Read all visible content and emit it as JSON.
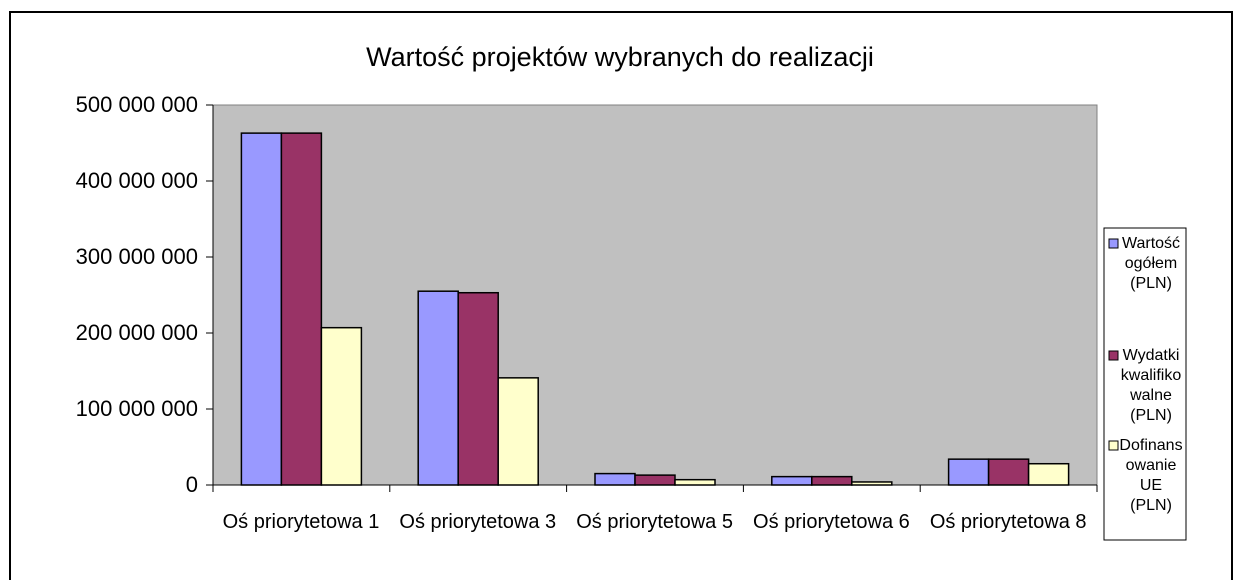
{
  "chart_data": {
    "type": "bar",
    "title": "Wartość projektów wybranych do realizacji",
    "categories": [
      "Oś priorytetowa 1",
      "Oś priorytetowa 3",
      "Oś priorytetowa 5",
      "Oś priorytetowa 6",
      "Oś priorytetowa 8"
    ],
    "series": [
      {
        "name": "Wartość ogółem (PLN)",
        "color": "#9999ff",
        "values": [
          463000000,
          255000000,
          15000000,
          11000000,
          34000000
        ]
      },
      {
        "name": "Wydatki kwalifikowalne (PLN)",
        "color": "#993366",
        "values": [
          463000000,
          253000000,
          13000000,
          11000000,
          34000000
        ]
      },
      {
        "name": "Dofinansowanie UE (PLN)",
        "color": "#ffffcc",
        "values": [
          207000000,
          141000000,
          7000000,
          4000000,
          28000000
        ]
      }
    ],
    "ylim": [
      0,
      500000000
    ],
    "yticks": [
      0,
      {
        "value": 100000000,
        "label": "100 000 000"
      },
      {
        "value": 200000000,
        "label": "200 000 000"
      },
      {
        "value": 300000000,
        "label": "300 000 000"
      },
      {
        "value": 400000000,
        "label": "400 000 000"
      },
      {
        "value": 500000000,
        "label": "500 000 000"
      }
    ],
    "plot_background": "#c0c0c0",
    "legend": "right"
  }
}
